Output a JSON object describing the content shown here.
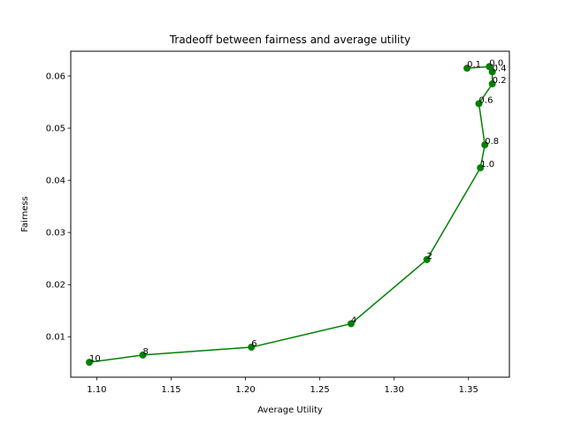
{
  "chart_data": {
    "type": "line",
    "title": "Tradeoff between fairness and average utility",
    "xlabel": "Average Utility",
    "ylabel": "Fairness",
    "xlim": [
      1.0825,
      1.3775
    ],
    "ylim": [
      0.00225,
      0.06475
    ],
    "xticks": [
      "1.10",
      "1.15",
      "1.20",
      "1.25",
      "1.30",
      "1.35"
    ],
    "yticks": [
      "0.01",
      "0.02",
      "0.03",
      "0.04",
      "0.05",
      "0.06"
    ],
    "grid": false,
    "color": "#008000",
    "series": [
      {
        "labels": [
          "0.1",
          "0.0",
          "0.4",
          "0.2",
          "0.6",
          "0.8",
          "1.0",
          "2",
          "4",
          "6",
          "8",
          "10"
        ],
        "x": [
          1.349,
          1.364,
          1.366,
          1.366,
          1.357,
          1.361,
          1.358,
          1.322,
          1.271,
          1.204,
          1.131,
          1.095
        ],
        "y": [
          0.0615,
          0.0618,
          0.0608,
          0.0585,
          0.0547,
          0.0468,
          0.0424,
          0.0248,
          0.0125,
          0.008,
          0.0065,
          0.0051
        ]
      }
    ]
  }
}
